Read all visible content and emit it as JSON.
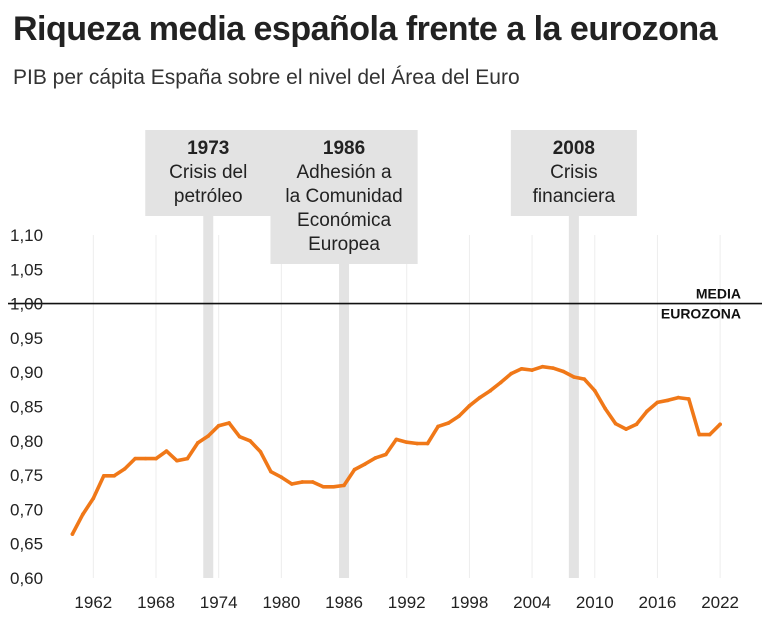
{
  "title": "Riqueza media española frente a la eurozona",
  "subtitle": "PIB per cápita España sobre el nivel del Área del Euro",
  "colors": {
    "line": "#f07818",
    "band": "#e3e3e3",
    "grid": "#ededed",
    "reference": "#111111"
  },
  "chart_data": {
    "type": "line",
    "title": "Riqueza media española frente a la eurozona",
    "subtitle": "PIB per cápita España sobre el nivel del Área del Euro",
    "xlabel": "",
    "ylabel": "",
    "xlim": [
      1959,
      2024
    ],
    "ylim": [
      0.6,
      1.1
    ],
    "xticks": [
      1962,
      1968,
      1974,
      1980,
      1986,
      1992,
      1998,
      2004,
      2010,
      2016,
      2022
    ],
    "yticks": [
      "0,60",
      "0,65",
      "0,70",
      "0,75",
      "0,80",
      "0,85",
      "0,90",
      "0,95",
      "1,00",
      "1,05",
      "1,10"
    ],
    "grid": "vertical",
    "reference_line": {
      "y": 1.0,
      "label_lines": [
        "MEDIA",
        "EUROZONA"
      ]
    },
    "annotations": [
      {
        "x": 1973,
        "year": "1973",
        "lines": [
          "Crisis del",
          "petróleo"
        ]
      },
      {
        "x": 1986,
        "year": "1986",
        "lines": [
          "Adhesión a",
          "la Comunidad",
          "Económica",
          "Europea"
        ]
      },
      {
        "x": 2008,
        "year": "2008",
        "lines": [
          "Crisis",
          "financiera"
        ]
      }
    ],
    "series": [
      {
        "x": [
          1960,
          1961,
          1962,
          1963,
          1964,
          1965,
          1966,
          1967,
          1968,
          1969,
          1970,
          1971,
          1972,
          1973,
          1974,
          1975,
          1976,
          1977,
          1978,
          1979,
          1980,
          1981,
          1982,
          1983,
          1984,
          1985,
          1986,
          1987,
          1988,
          1989,
          1990,
          1991,
          1992,
          1993,
          1994,
          1995,
          1996,
          1997,
          1998,
          1999,
          2000,
          2001,
          2002,
          2003,
          2004,
          2005,
          2006,
          2007,
          2008,
          2009,
          2010,
          2011,
          2012,
          2013,
          2014,
          2015,
          2016,
          2017,
          2018,
          2019,
          2020,
          2021,
          2022
        ],
        "values": [
          0.664,
          0.693,
          0.716,
          0.749,
          0.749,
          0.759,
          0.774,
          0.774,
          0.774,
          0.785,
          0.771,
          0.774,
          0.797,
          0.807,
          0.822,
          0.826,
          0.806,
          0.8,
          0.784,
          0.755,
          0.747,
          0.737,
          0.74,
          0.74,
          0.733,
          0.733,
          0.735,
          0.758,
          0.766,
          0.775,
          0.78,
          0.802,
          0.798,
          0.796,
          0.796,
          0.821,
          0.826,
          0.836,
          0.851,
          0.863,
          0.873,
          0.885,
          0.898,
          0.905,
          0.903,
          0.908,
          0.906,
          0.901,
          0.893,
          0.89,
          0.873,
          0.847,
          0.825,
          0.817,
          0.824,
          0.843,
          0.856,
          0.859,
          0.863,
          0.861,
          0.809,
          0.809,
          0.824
        ]
      }
    ]
  }
}
